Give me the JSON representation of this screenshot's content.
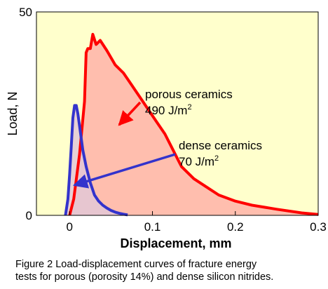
{
  "chart_data": {
    "type": "area",
    "xlabel": "Displacement, mm",
    "ylabel": "Load, N",
    "xlim": [
      -0.04,
      0.3
    ],
    "ylim": [
      0,
      50
    ],
    "x_ticks": [
      0,
      0.1,
      0.2,
      0.3
    ],
    "x_tick_labels": [
      "0",
      "0.1",
      "0.2",
      "0.3"
    ],
    "y_ticks": [
      0,
      50
    ],
    "y_tick_labels": [
      "0",
      "50"
    ],
    "grid": false,
    "background_color": "#ffffcc",
    "series": [
      {
        "name": "porous ceramics",
        "value_label": "490 J/m",
        "value_sup": "2",
        "line_color": "#ff0000",
        "fill_color": "#ffb3a8",
        "points": [
          [
            0,
            0
          ],
          [
            0.005,
            4
          ],
          [
            0.012,
            15
          ],
          [
            0.018,
            28
          ],
          [
            0.02,
            40
          ],
          [
            0.022,
            41
          ],
          [
            0.025,
            41
          ],
          [
            0.028,
            44.5
          ],
          [
            0.032,
            42
          ],
          [
            0.037,
            43
          ],
          [
            0.045,
            40.5
          ],
          [
            0.055,
            37
          ],
          [
            0.065,
            35
          ],
          [
            0.075,
            32
          ],
          [
            0.085,
            29
          ],
          [
            0.095,
            26
          ],
          [
            0.105,
            23
          ],
          [
            0.115,
            20
          ],
          [
            0.125,
            16
          ],
          [
            0.135,
            12
          ],
          [
            0.15,
            9
          ],
          [
            0.165,
            7
          ],
          [
            0.18,
            5
          ],
          [
            0.2,
            3.5
          ],
          [
            0.22,
            2.5
          ],
          [
            0.25,
            1.5
          ],
          [
            0.28,
            0.6
          ],
          [
            0.3,
            0.2
          ]
        ]
      },
      {
        "name": "dense ceramics",
        "value_label": "70 J/m",
        "value_sup": "2",
        "line_color": "#3333cc",
        "fill_color": "#e3c8d6",
        "points": [
          [
            -0.005,
            0
          ],
          [
            -0.002,
            4
          ],
          [
            0,
            10
          ],
          [
            0.002,
            17
          ],
          [
            0.004,
            24
          ],
          [
            0.006,
            27
          ],
          [
            0.008,
            27
          ],
          [
            0.01,
            25
          ],
          [
            0.012,
            22
          ],
          [
            0.016,
            16
          ],
          [
            0.02,
            12
          ],
          [
            0.025,
            8
          ],
          [
            0.03,
            5
          ],
          [
            0.035,
            3.5
          ],
          [
            0.04,
            2.5
          ],
          [
            0.045,
            1.8
          ],
          [
            0.05,
            1.2
          ],
          [
            0.055,
            0.8
          ],
          [
            0.06,
            0.5
          ],
          [
            0.065,
            0.3
          ],
          [
            0.07,
            0.1
          ]
        ]
      }
    ]
  },
  "caption_line1": "Figure 2 Load-displacement curves of fracture energy",
  "caption_line2": "tests for porous (porosity 14%) and dense silicon nitrides."
}
